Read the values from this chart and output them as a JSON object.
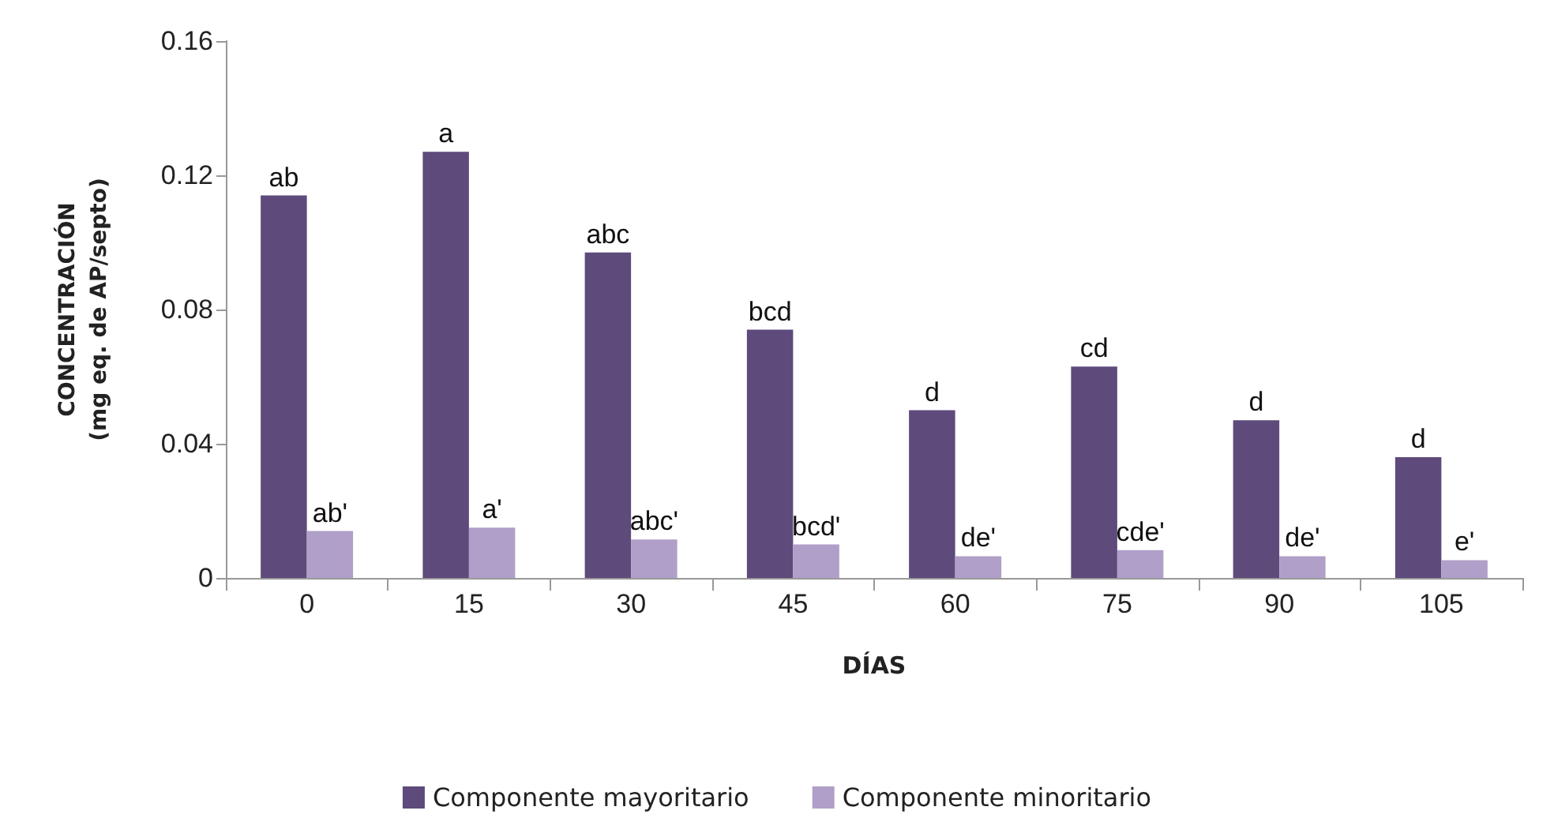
{
  "chart_data": {
    "type": "bar",
    "xlabel": "DÍAS",
    "ylabel": "CONCENTRACIÓN\n(mg eq. de AP/septo)",
    "categories": [
      "0",
      "15",
      "30",
      "45",
      "60",
      "75",
      "90",
      "105"
    ],
    "series": [
      {
        "name": "Componente mayoritario",
        "color": "#5e4a7b",
        "values": [
          0.114,
          0.127,
          0.097,
          0.074,
          0.05,
          0.063,
          0.047,
          0.036
        ],
        "value_labels": [
          "ab",
          "a",
          "abc",
          "bcd",
          "d",
          "cd",
          "d",
          "d"
        ]
      },
      {
        "name": "Componente minoritario",
        "color": "#b09fc8",
        "values": [
          0.014,
          0.015,
          0.0115,
          0.01,
          0.0065,
          0.0083,
          0.0065,
          0.0053
        ],
        "value_labels": [
          "ab'",
          "a'",
          "abc'",
          "bcd'",
          "de'",
          "cde'",
          "de'",
          "e'"
        ]
      }
    ],
    "ylim": [
      0,
      0.16
    ],
    "yticks": [
      0,
      0.04,
      0.08,
      0.12,
      0.16
    ],
    "grid": false,
    "legend": "bottom"
  }
}
